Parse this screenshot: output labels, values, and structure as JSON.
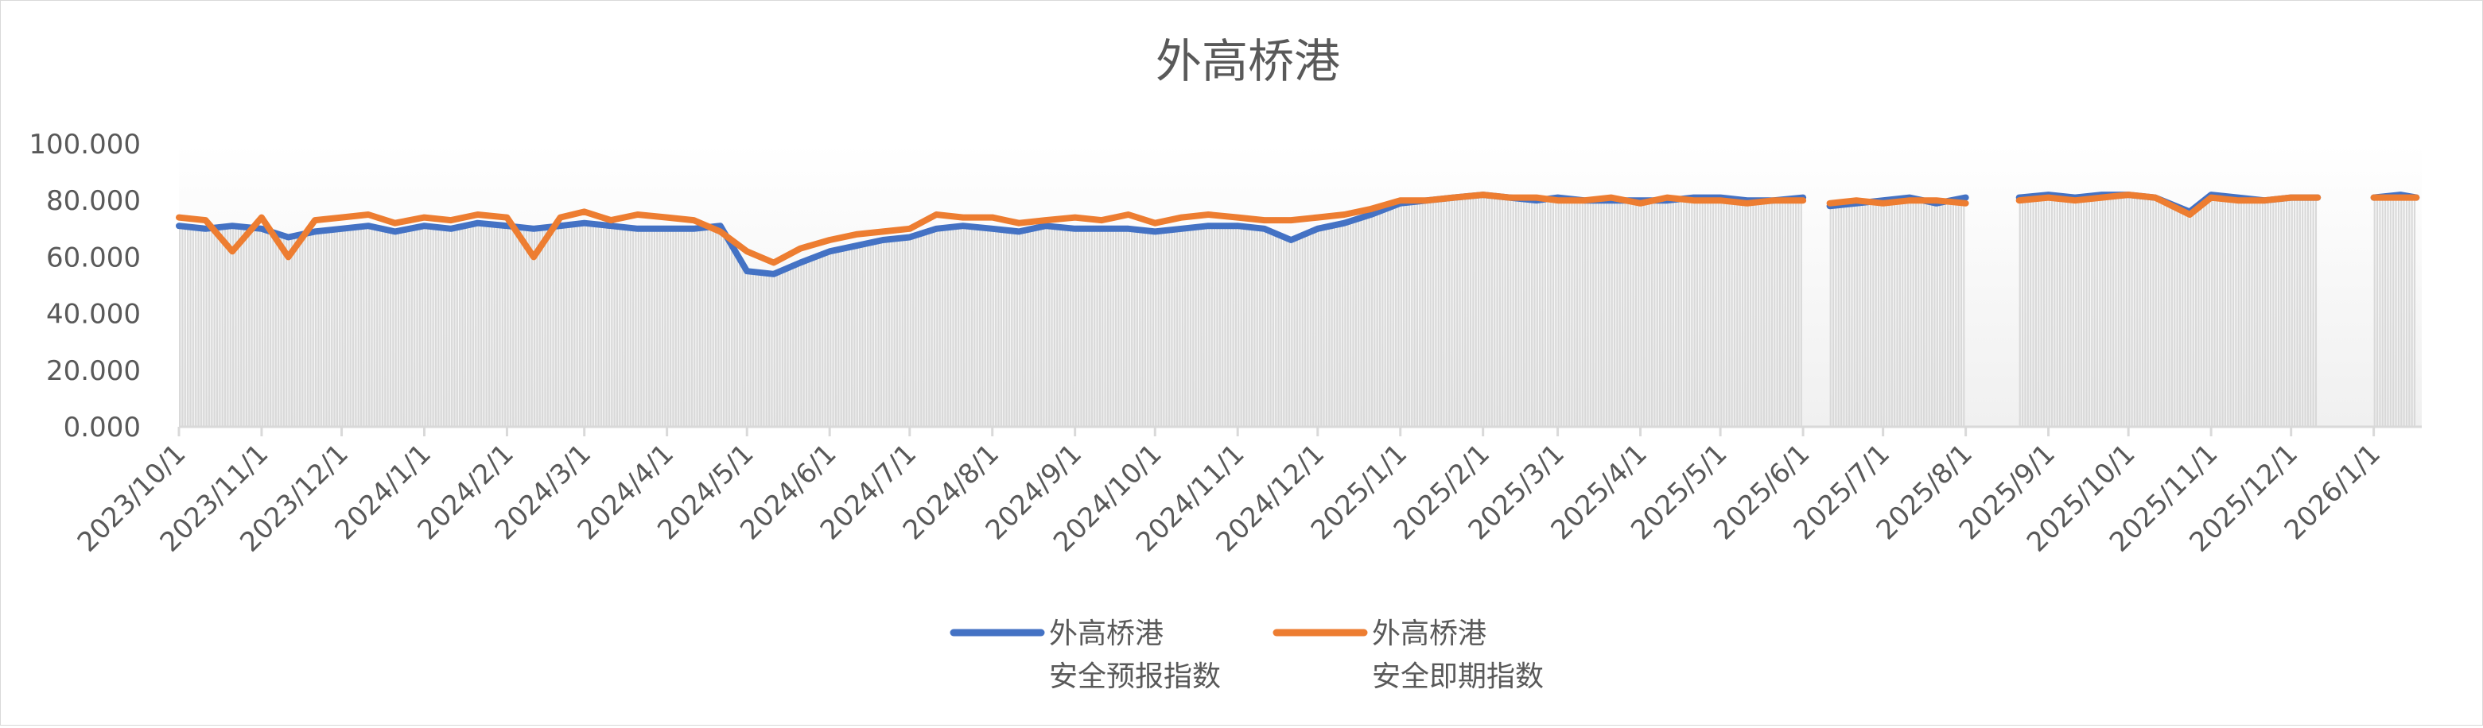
{
  "chart_data": {
    "type": "line",
    "title": "外高桥港",
    "xlabel": "",
    "ylabel": "",
    "ylim": [
      0,
      100
    ],
    "yticks": [
      "0.000",
      "20.000",
      "40.000",
      "60.000",
      "80.000",
      "100.000"
    ],
    "xlim": [
      "2023/10/1",
      "2026/1/19"
    ],
    "xticks": [
      "2023/10/1",
      "2023/11/1",
      "2023/12/1",
      "2024/1/1",
      "2024/2/1",
      "2024/3/1",
      "2024/4/1",
      "2024/5/1",
      "2024/6/1",
      "2024/7/1",
      "2024/8/1",
      "2024/9/1",
      "2024/10/1",
      "2024/11/1",
      "2024/12/1",
      "2025/1/1",
      "2025/2/1",
      "2025/3/1",
      "2025/4/1",
      "2025/5/1",
      "2025/6/1",
      "2025/7/1",
      "2025/8/1",
      "2025/9/1",
      "2025/10/1",
      "2025/11/1",
      "2025/12/1",
      "2026/1/1"
    ],
    "grid": false,
    "legend_position": "bottom",
    "background_columns_color": "#d9d9d9",
    "x": [
      "2023/10/1",
      "2023/10/11",
      "2023/10/21",
      "2023/11/1",
      "2023/11/11",
      "2023/11/21",
      "2023/12/1",
      "2023/12/11",
      "2023/12/21",
      "2024/1/1",
      "2024/1/11",
      "2024/1/21",
      "2024/2/1",
      "2024/2/11",
      "2024/2/21",
      "2024/3/1",
      "2024/3/11",
      "2024/3/21",
      "2024/4/1",
      "2024/4/11",
      "2024/4/21",
      "2024/5/1",
      "2024/5/11",
      "2024/5/21",
      "2024/6/1",
      "2024/6/11",
      "2024/6/21",
      "2024/7/1",
      "2024/7/11",
      "2024/7/21",
      "2024/8/1",
      "2024/8/11",
      "2024/8/21",
      "2024/9/1",
      "2024/9/11",
      "2024/9/21",
      "2024/10/1",
      "2024/10/11",
      "2024/10/21",
      "2024/11/1",
      "2024/11/11",
      "2024/11/21",
      "2024/12/1",
      "2024/12/11",
      "2024/12/21",
      "2025/1/1",
      "2025/1/11",
      "2025/1/21",
      "2025/2/1",
      "2025/2/11",
      "2025/2/21",
      "2025/3/1",
      "2025/3/11",
      "2025/3/21",
      "2025/4/1",
      "2025/4/11",
      "2025/4/21",
      "2025/5/1",
      "2025/5/11",
      "2025/5/21",
      "2025/6/1",
      "2025/6/7",
      "2025/6/11",
      "2025/6/21",
      "2025/7/1",
      "2025/7/11",
      "2025/7/21",
      "2025/8/1",
      "2025/8/4",
      "2025/8/6",
      "2025/8/11",
      "2025/8/21",
      "2025/9/1",
      "2025/9/11",
      "2025/9/21",
      "2025/10/1",
      "2025/10/11",
      "2025/10/24",
      "2025/11/1",
      "2025/11/11",
      "2025/11/21",
      "2025/12/1",
      "2025/12/11",
      "2025/12/21",
      "2026/1/1",
      "2026/1/11",
      "2026/1/17"
    ],
    "series": [
      {
        "name": "外高桥港\n安全预报指数",
        "color": "#4472c4",
        "values": [
          71,
          70,
          71,
          70,
          67,
          69,
          70,
          71,
          69,
          71,
          70,
          72,
          71,
          70,
          71,
          72,
          71,
          70,
          70,
          70,
          71,
          55,
          54,
          58,
          62,
          64,
          66,
          67,
          70,
          71,
          70,
          69,
          71,
          70,
          70,
          70,
          69,
          70,
          71,
          71,
          70,
          66,
          70,
          72,
          75,
          79,
          80,
          81,
          82,
          81,
          80,
          81,
          80,
          80,
          80,
          80,
          81,
          81,
          80,
          80,
          81,
          null,
          78,
          79,
          80,
          81,
          79,
          81,
          null,
          82,
          null,
          81,
          82,
          81,
          82,
          82,
          81,
          76,
          82,
          81,
          80,
          81,
          81,
          null,
          81,
          82,
          81
        ]
      },
      {
        "name": "外高桥港\n安全即期指数",
        "color": "#ed7d31",
        "values": [
          74,
          73,
          62,
          74,
          60,
          73,
          74,
          75,
          72,
          74,
          73,
          75,
          74,
          60,
          74,
          76,
          73,
          75,
          74,
          73,
          69,
          62,
          58,
          63,
          66,
          68,
          69,
          70,
          75,
          74,
          74,
          72,
          73,
          74,
          73,
          75,
          72,
          74,
          75,
          74,
          73,
          73,
          74,
          75,
          77,
          80,
          80,
          81,
          82,
          81,
          81,
          80,
          80,
          81,
          79,
          81,
          80,
          80,
          79,
          80,
          80,
          null,
          79,
          80,
          79,
          80,
          80,
          79,
          null,
          80,
          null,
          80,
          81,
          80,
          81,
          82,
          81,
          75,
          81,
          80,
          80,
          81,
          81,
          null,
          81,
          81,
          81
        ]
      }
    ]
  },
  "legend": {
    "items": [
      {
        "line1": "外高桥港",
        "line2": "安全预报指数",
        "color": "#4472c4"
      },
      {
        "line1": "外高桥港",
        "line2": "安全即期指数",
        "color": "#ed7d31"
      }
    ]
  }
}
